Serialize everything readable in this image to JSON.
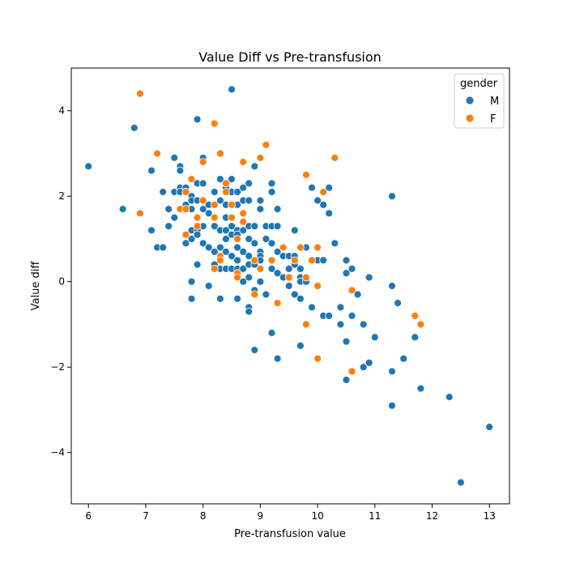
{
  "chart_data": {
    "type": "scatter",
    "title": "Value Diff vs Pre-transfusion",
    "xlabel": "Pre-transfusion value",
    "ylabel": "Value diff",
    "xlim": [
      5.7,
      13.35
    ],
    "ylim": [
      -5.2,
      5.0
    ],
    "xticks": [
      6,
      7,
      8,
      9,
      10,
      11,
      12,
      13
    ],
    "yticks": [
      -4,
      -2,
      0,
      2,
      4
    ],
    "ytick_labels": [
      "−4",
      "−2",
      "0",
      "2",
      "4"
    ],
    "grid": false,
    "legend": {
      "title": "gender",
      "placement": "top-right"
    },
    "colors": {
      "M": "#1f77b4",
      "F": "#ff7f0e"
    },
    "series": [
      {
        "name": "M",
        "points": [
          [
            6.0,
            2.7
          ],
          [
            6.6,
            1.7
          ],
          [
            6.8,
            3.6
          ],
          [
            7.1,
            2.6
          ],
          [
            7.1,
            1.2
          ],
          [
            7.2,
            0.8
          ],
          [
            7.3,
            2.1
          ],
          [
            7.3,
            0.8
          ],
          [
            7.4,
            1.7
          ],
          [
            7.4,
            1.3
          ],
          [
            7.5,
            2.9
          ],
          [
            7.5,
            2.1
          ],
          [
            7.5,
            1.5
          ],
          [
            7.6,
            2.7
          ],
          [
            7.6,
            2.6
          ],
          [
            7.6,
            2.2
          ],
          [
            7.6,
            2.1
          ],
          [
            7.7,
            2.2
          ],
          [
            7.7,
            2.1
          ],
          [
            7.7,
            1.8
          ],
          [
            7.7,
            1.7
          ],
          [
            7.7,
            1.1
          ],
          [
            7.7,
            0.9
          ],
          [
            7.8,
            2.0
          ],
          [
            7.8,
            1.9
          ],
          [
            7.8,
            1.7
          ],
          [
            7.8,
            1.2
          ],
          [
            7.8,
            1.0
          ],
          [
            7.8,
            0.0
          ],
          [
            7.8,
            -0.4
          ],
          [
            7.9,
            3.8
          ],
          [
            7.9,
            2.3
          ],
          [
            7.9,
            1.9
          ],
          [
            7.9,
            1.2
          ],
          [
            7.9,
            1.1
          ],
          [
            7.9,
            0.4
          ],
          [
            8.0,
            2.9
          ],
          [
            8.0,
            2.3
          ],
          [
            8.0,
            1.7
          ],
          [
            8.0,
            1.3
          ],
          [
            8.0,
            0.9
          ],
          [
            8.1,
            1.8
          ],
          [
            8.1,
            1.6
          ],
          [
            8.1,
            0.8
          ],
          [
            8.1,
            -0.1
          ],
          [
            8.2,
            2.1
          ],
          [
            8.2,
            1.3
          ],
          [
            8.2,
            0.7
          ],
          [
            8.2,
            0.4
          ],
          [
            8.3,
            2.4
          ],
          [
            8.3,
            1.9
          ],
          [
            8.3,
            1.2
          ],
          [
            8.3,
            0.8
          ],
          [
            8.3,
            0.3
          ],
          [
            8.3,
            -0.4
          ],
          [
            8.4,
            2.2
          ],
          [
            8.4,
            1.8
          ],
          [
            8.4,
            1.5
          ],
          [
            8.4,
            1.2
          ],
          [
            8.4,
            1.0
          ],
          [
            8.4,
            0.7
          ],
          [
            8.4,
            0.3
          ],
          [
            8.5,
            4.5
          ],
          [
            8.5,
            2.4
          ],
          [
            8.5,
            2.1
          ],
          [
            8.5,
            1.3
          ],
          [
            8.5,
            1.1
          ],
          [
            8.5,
            0.6
          ],
          [
            8.5,
            0.3
          ],
          [
            8.6,
            2.1
          ],
          [
            8.6,
            1.8
          ],
          [
            8.6,
            1.2
          ],
          [
            8.6,
            1.1
          ],
          [
            8.6,
            0.8
          ],
          [
            8.6,
            0.5
          ],
          [
            8.6,
            0.3
          ],
          [
            8.6,
            -0.4
          ],
          [
            8.7,
            2.2
          ],
          [
            8.7,
            1.9
          ],
          [
            8.7,
            1.2
          ],
          [
            8.7,
            0.7
          ],
          [
            8.7,
            0.3
          ],
          [
            8.7,
            0.0
          ],
          [
            8.8,
            2.3
          ],
          [
            8.8,
            1.9
          ],
          [
            8.8,
            1.3
          ],
          [
            8.8,
            1.0
          ],
          [
            8.8,
            0.6
          ],
          [
            8.8,
            0.4
          ],
          [
            8.8,
            0.1
          ],
          [
            8.8,
            -0.6
          ],
          [
            8.8,
            -0.7
          ],
          [
            8.9,
            2.7
          ],
          [
            8.9,
            1.3
          ],
          [
            8.9,
            0.9
          ],
          [
            8.9,
            0.4
          ],
          [
            8.9,
            -0.2
          ],
          [
            8.9,
            -1.6
          ],
          [
            9.0,
            1.9
          ],
          [
            9.0,
            1.7
          ],
          [
            9.0,
            0.7
          ],
          [
            9.0,
            0.6
          ],
          [
            9.0,
            0.5
          ],
          [
            9.0,
            0.0
          ],
          [
            9.1,
            1.3
          ],
          [
            9.1,
            1.0
          ],
          [
            9.1,
            -0.3
          ],
          [
            9.2,
            2.3
          ],
          [
            9.2,
            2.1
          ],
          [
            9.2,
            1.3
          ],
          [
            9.2,
            0.9
          ],
          [
            9.2,
            0.3
          ],
          [
            9.2,
            -1.2
          ],
          [
            9.3,
            1.7
          ],
          [
            9.3,
            1.3
          ],
          [
            9.3,
            0.7
          ],
          [
            9.3,
            0.2
          ],
          [
            9.3,
            -1.8
          ],
          [
            9.4,
            0.6
          ],
          [
            9.4,
            0.1
          ],
          [
            9.5,
            0.6
          ],
          [
            9.5,
            0.3
          ],
          [
            9.5,
            -0.1
          ],
          [
            9.6,
            1.2
          ],
          [
            9.6,
            0.6
          ],
          [
            9.6,
            0.4
          ],
          [
            9.6,
            -0.3
          ],
          [
            9.7,
            0.3
          ],
          [
            9.7,
            0.1
          ],
          [
            9.7,
            0.0
          ],
          [
            9.7,
            -0.4
          ],
          [
            9.7,
            -1.5
          ],
          [
            9.8,
            0.8
          ],
          [
            9.8,
            0.0
          ],
          [
            9.9,
            2.2
          ],
          [
            9.9,
            0.5
          ],
          [
            9.9,
            -0.6
          ],
          [
            10.0,
            1.9
          ],
          [
            10.0,
            0.5
          ],
          [
            10.1,
            1.8
          ],
          [
            10.1,
            0.5
          ],
          [
            10.1,
            -0.8
          ],
          [
            10.2,
            2.2
          ],
          [
            10.2,
            1.6
          ],
          [
            10.2,
            -0.8
          ],
          [
            10.3,
            0.9
          ],
          [
            10.4,
            -0.6
          ],
          [
            10.4,
            -1.0
          ],
          [
            10.5,
            0.5
          ],
          [
            10.5,
            0.2
          ],
          [
            10.5,
            -1.4
          ],
          [
            10.5,
            -2.3
          ],
          [
            10.6,
            0.3
          ],
          [
            10.6,
            -0.8
          ],
          [
            10.7,
            -0.3
          ],
          [
            10.8,
            -1.0
          ],
          [
            10.8,
            -2.0
          ],
          [
            10.9,
            0.1
          ],
          [
            10.9,
            -1.9
          ],
          [
            11.0,
            -1.3
          ],
          [
            11.3,
            2.0
          ],
          [
            11.3,
            -0.1
          ],
          [
            11.3,
            -2.1
          ],
          [
            11.3,
            -2.9
          ],
          [
            11.4,
            -0.5
          ],
          [
            11.5,
            -1.8
          ],
          [
            11.7,
            -1.3
          ],
          [
            11.8,
            -2.5
          ],
          [
            12.3,
            -2.7
          ],
          [
            12.5,
            -4.7
          ],
          [
            13.0,
            -3.4
          ]
        ]
      },
      {
        "name": "F",
        "points": [
          [
            6.9,
            4.4
          ],
          [
            6.9,
            1.6
          ],
          [
            7.2,
            3.0
          ],
          [
            7.6,
            1.7
          ],
          [
            7.7,
            2.1
          ],
          [
            7.7,
            1.7
          ],
          [
            7.7,
            1.1
          ],
          [
            7.8,
            2.4
          ],
          [
            7.9,
            1.5
          ],
          [
            7.9,
            1.3
          ],
          [
            8.0,
            2.8
          ],
          [
            8.0,
            1.9
          ],
          [
            8.2,
            3.7
          ],
          [
            8.2,
            1.8
          ],
          [
            8.2,
            1.5
          ],
          [
            8.2,
            0.3
          ],
          [
            8.3,
            3.0
          ],
          [
            8.3,
            0.6
          ],
          [
            8.3,
            0.5
          ],
          [
            8.4,
            2.3
          ],
          [
            8.4,
            2.1
          ],
          [
            8.5,
            1.8
          ],
          [
            8.5,
            1.5
          ],
          [
            8.6,
            1.0
          ],
          [
            8.6,
            0.2
          ],
          [
            8.6,
            0.1
          ],
          [
            8.7,
            2.8
          ],
          [
            8.7,
            1.6
          ],
          [
            8.7,
            1.4
          ],
          [
            8.9,
            0.5
          ],
          [
            8.9,
            -0.3
          ],
          [
            9.0,
            2.9
          ],
          [
            9.0,
            0.3
          ],
          [
            9.1,
            3.2
          ],
          [
            9.2,
            0.5
          ],
          [
            9.3,
            -0.5
          ],
          [
            9.4,
            0.8
          ],
          [
            9.5,
            0.1
          ],
          [
            9.6,
            0.5
          ],
          [
            9.7,
            0.8
          ],
          [
            9.8,
            2.5
          ],
          [
            9.8,
            0.1
          ],
          [
            9.8,
            -1.0
          ],
          [
            9.9,
            0.5
          ],
          [
            10.0,
            0.8
          ],
          [
            10.0,
            -0.1
          ],
          [
            10.0,
            -1.8
          ],
          [
            10.1,
            2.1
          ],
          [
            10.3,
            2.9
          ],
          [
            10.6,
            -0.2
          ],
          [
            10.6,
            -2.1
          ],
          [
            11.7,
            -0.8
          ],
          [
            11.8,
            -1.0
          ]
        ]
      }
    ]
  }
}
